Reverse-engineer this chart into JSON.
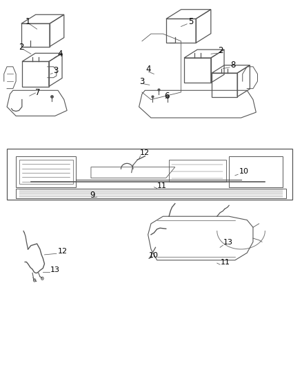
{
  "bg_color": "#ffffff",
  "line_color": "#555555",
  "fig_width": 4.38,
  "fig_height": 5.33,
  "dpi": 100,
  "font_size": 8.5,
  "font_size_small": 8.0
}
